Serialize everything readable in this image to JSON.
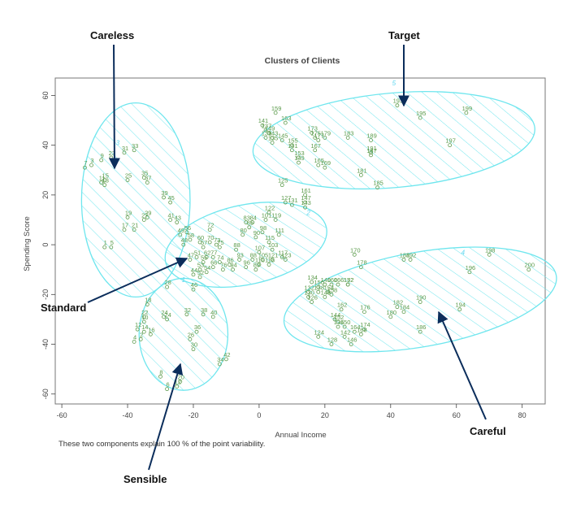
{
  "footnote": "These two components explain 100 % of the point variability.",
  "callouts": [
    {
      "id": "careless",
      "label": "Careless"
    },
    {
      "id": "target",
      "label": "Target"
    },
    {
      "id": "standard",
      "label": "Standard"
    },
    {
      "id": "careful",
      "label": "Careful"
    },
    {
      "id": "sensible",
      "label": "Sensible"
    }
  ],
  "colors": {
    "cluster": "#6fe6ee",
    "cluster_label": "#5fd6f0",
    "point": "#5a9a4a",
    "arrow": "#0b2d5b",
    "axis": "#444444"
  },
  "chart_data": {
    "type": "scatter",
    "title": "Clusters of Clients",
    "xlabel": "Annual Income",
    "ylabel": "Spending Score",
    "xlim": [
      -62,
      87
    ],
    "ylim": [
      -64,
      67
    ],
    "xticks": [
      -60,
      -40,
      -20,
      0,
      20,
      40,
      60,
      80
    ],
    "yticks": [
      -60,
      -40,
      -20,
      0,
      20,
      40,
      60
    ],
    "grid": false,
    "clusters": [
      {
        "label": "3",
        "cx": -37.5,
        "cy": 18,
        "rx": 16.5,
        "ry": 39,
        "angle": 0,
        "label_x": -43,
        "label_y": 40
      },
      {
        "label": "5",
        "cx": 41,
        "cy": 42,
        "rx": 43,
        "ry": 19,
        "angle": 5,
        "label_x": 41,
        "label_y": 64
      },
      {
        "label": "2",
        "cx": -4,
        "cy": 0,
        "rx": 25,
        "ry": 16,
        "angle": 12,
        "label_x": 15,
        "label_y": 12
      },
      {
        "label": "4",
        "cx": 49,
        "cy": -22,
        "rx": 42,
        "ry": 19,
        "angle": 10,
        "label_x": 62,
        "label_y": -4
      },
      {
        "label": "1",
        "cx": -23,
        "cy": -36,
        "rx": 13.5,
        "ry": 22.5,
        "angle": 0,
        "label_x": -23,
        "label_y": -15
      }
    ],
    "points": [
      {
        "x": -51,
        "y": 32,
        "label": "3"
      },
      {
        "x": -53,
        "y": 31,
        "label": "7"
      },
      {
        "x": -48,
        "y": 34,
        "label": "9"
      },
      {
        "x": -45,
        "y": 35,
        "label": "23"
      },
      {
        "x": -41,
        "y": 37,
        "label": "31"
      },
      {
        "x": -38,
        "y": 38,
        "label": "33"
      },
      {
        "x": -47,
        "y": 26,
        "label": "15"
      },
      {
        "x": -48,
        "y": 25,
        "label": "11"
      },
      {
        "x": -47,
        "y": 24,
        "label": "13"
      },
      {
        "x": -40,
        "y": 26,
        "label": "25"
      },
      {
        "x": -35,
        "y": 27,
        "label": "35"
      },
      {
        "x": -34,
        "y": 25,
        "label": "37"
      },
      {
        "x": -29,
        "y": 19,
        "label": "39"
      },
      {
        "x": -27,
        "y": 17,
        "label": "45"
      },
      {
        "x": -40,
        "y": 11,
        "label": "19"
      },
      {
        "x": -34,
        "y": 11,
        "label": "29"
      },
      {
        "x": -35,
        "y": 10,
        "label": "27"
      },
      {
        "x": -27,
        "y": 10,
        "label": "41"
      },
      {
        "x": -25,
        "y": 9,
        "label": "43"
      },
      {
        "x": -41,
        "y": 6,
        "label": "17"
      },
      {
        "x": -38,
        "y": 6,
        "label": "21"
      },
      {
        "x": -47,
        "y": -1,
        "label": "1"
      },
      {
        "x": -45,
        "y": -1,
        "label": "5"
      },
      {
        "x": 5,
        "y": 53,
        "label": "159"
      },
      {
        "x": 8,
        "y": 49,
        "label": "163"
      },
      {
        "x": 1,
        "y": 48,
        "label": "141"
      },
      {
        "x": 2,
        "y": 46,
        "label": "137"
      },
      {
        "x": 3,
        "y": 45,
        "label": "149"
      },
      {
        "x": 2,
        "y": 43,
        "label": "139"
      },
      {
        "x": 4,
        "y": 43,
        "label": "143"
      },
      {
        "x": 7,
        "y": 42,
        "label": "145"
      },
      {
        "x": 4,
        "y": 41,
        "label": "135"
      },
      {
        "x": 10,
        "y": 40,
        "label": "155"
      },
      {
        "x": 10,
        "y": 38,
        "label": "151"
      },
      {
        "x": 12,
        "y": 35,
        "label": "153"
      },
      {
        "x": 12,
        "y": 33,
        "label": "149"
      },
      {
        "x": 16,
        "y": 45,
        "label": "173"
      },
      {
        "x": 17,
        "y": 43,
        "label": "175"
      },
      {
        "x": 20,
        "y": 43,
        "label": "179"
      },
      {
        "x": 27,
        "y": 43,
        "label": "183"
      },
      {
        "x": 34,
        "y": 42,
        "label": "189"
      },
      {
        "x": 18,
        "y": 42,
        "label": "177"
      },
      {
        "x": 17,
        "y": 38,
        "label": "167"
      },
      {
        "x": 34,
        "y": 37,
        "label": "191"
      },
      {
        "x": 34,
        "y": 36,
        "label": "187"
      },
      {
        "x": 18,
        "y": 32,
        "label": "165"
      },
      {
        "x": 20,
        "y": 31,
        "label": "169"
      },
      {
        "x": 31,
        "y": 28,
        "label": "181"
      },
      {
        "x": 36,
        "y": 23,
        "label": "185"
      },
      {
        "x": 42,
        "y": 56,
        "label": "193"
      },
      {
        "x": 49,
        "y": 51,
        "label": "195"
      },
      {
        "x": 63,
        "y": 53,
        "label": "199"
      },
      {
        "x": 58,
        "y": 40,
        "label": "197"
      },
      {
        "x": 7,
        "y": 24,
        "label": "125"
      },
      {
        "x": 14,
        "y": 20,
        "label": "161"
      },
      {
        "x": 14,
        "y": 17,
        "label": "147"
      },
      {
        "x": 8,
        "y": 17,
        "label": "127"
      },
      {
        "x": 10,
        "y": 16,
        "label": "131"
      },
      {
        "x": 14,
        "y": 15,
        "label": "143"
      },
      {
        "x": 3,
        "y": 13,
        "label": "122"
      },
      {
        "x": -4,
        "y": 9,
        "label": "83"
      },
      {
        "x": -2,
        "y": 9,
        "label": "84"
      },
      {
        "x": 2,
        "y": 10,
        "label": "101"
      },
      {
        "x": 5,
        "y": 10,
        "label": "119"
      },
      {
        "x": -15,
        "y": 6,
        "label": "72"
      },
      {
        "x": -22,
        "y": 5,
        "label": "56"
      },
      {
        "x": -24,
        "y": 4,
        "label": "49"
      },
      {
        "x": -21,
        "y": 2,
        "label": "58"
      },
      {
        "x": -18,
        "y": 1,
        "label": "60"
      },
      {
        "x": -15,
        "y": 1,
        "label": "70"
      },
      {
        "x": -13,
        "y": 0,
        "label": "73"
      },
      {
        "x": -23,
        "y": 0,
        "label": "48"
      },
      {
        "x": -17,
        "y": -1,
        "label": "57"
      },
      {
        "x": -12,
        "y": -1,
        "label": "75"
      },
      {
        "x": -7,
        "y": -2,
        "label": "88"
      },
      {
        "x": 0,
        "y": -3,
        "label": "107"
      },
      {
        "x": 4,
        "y": -2,
        "label": "103"
      },
      {
        "x": 3,
        "y": 1,
        "label": "115"
      },
      {
        "x": -1,
        "y": 3,
        "label": "90"
      },
      {
        "x": 1,
        "y": 5,
        "label": "98"
      },
      {
        "x": -5,
        "y": 4,
        "label": "80"
      },
      {
        "x": -3,
        "y": 7,
        "label": "85"
      },
      {
        "x": 6,
        "y": 4,
        "label": "111"
      },
      {
        "x": -19,
        "y": -5,
        "label": "51"
      },
      {
        "x": -21,
        "y": -6,
        "label": "47"
      },
      {
        "x": -16,
        "y": -5,
        "label": "62"
      },
      {
        "x": -14,
        "y": -5,
        "label": "77"
      },
      {
        "x": -12,
        "y": -7,
        "label": "74"
      },
      {
        "x": -9,
        "y": -8,
        "label": "86"
      },
      {
        "x": -6,
        "y": -6,
        "label": "93"
      },
      {
        "x": -2,
        "y": -6,
        "label": "88"
      },
      {
        "x": 1,
        "y": -6,
        "label": "105"
      },
      {
        "x": 4,
        "y": -6,
        "label": "121"
      },
      {
        "x": 8,
        "y": -6,
        "label": "123"
      },
      {
        "x": 7,
        "y": -5,
        "label": "117"
      },
      {
        "x": -17,
        "y": -7,
        "label": "55"
      },
      {
        "x": -14,
        "y": -9,
        "label": "66"
      },
      {
        "x": -11,
        "y": -10,
        "label": "76"
      },
      {
        "x": -8,
        "y": -10,
        "label": "94"
      },
      {
        "x": -4,
        "y": -9,
        "label": "96"
      },
      {
        "x": 0,
        "y": -8,
        "label": "110"
      },
      {
        "x": 3,
        "y": -8,
        "label": "118"
      },
      {
        "x": -1,
        "y": -10,
        "label": "89"
      },
      {
        "x": -18,
        "y": -10,
        "label": "53"
      },
      {
        "x": -16,
        "y": -11,
        "label": "54"
      },
      {
        "x": -20,
        "y": -12,
        "label": "44"
      },
      {
        "x": -18,
        "y": -13,
        "label": "52"
      },
      {
        "x": -20,
        "y": -18,
        "label": "46"
      },
      {
        "x": -28,
        "y": -17,
        "label": "28"
      },
      {
        "x": -34,
        "y": -24,
        "label": "18"
      },
      {
        "x": -35,
        "y": -29,
        "label": "22"
      },
      {
        "x": -29,
        "y": -29,
        "label": "24"
      },
      {
        "x": -28,
        "y": -30,
        "label": "24"
      },
      {
        "x": -22,
        "y": -28,
        "label": "32"
      },
      {
        "x": -17,
        "y": -28,
        "label": "38"
      },
      {
        "x": -14,
        "y": -29,
        "label": "40"
      },
      {
        "x": -35,
        "y": -31,
        "label": "10"
      },
      {
        "x": -37,
        "y": -34,
        "label": "12"
      },
      {
        "x": -35,
        "y": -35,
        "label": "14"
      },
      {
        "x": -33,
        "y": -36,
        "label": "16"
      },
      {
        "x": -36,
        "y": -38,
        "label": "2"
      },
      {
        "x": -38,
        "y": -39,
        "label": "4"
      },
      {
        "x": -19,
        "y": -35,
        "label": "36"
      },
      {
        "x": -21,
        "y": -38,
        "label": "26"
      },
      {
        "x": -20,
        "y": -42,
        "label": "30"
      },
      {
        "x": -12,
        "y": -48,
        "label": "34"
      },
      {
        "x": -10,
        "y": -46,
        "label": "42"
      },
      {
        "x": -30,
        "y": -53,
        "label": "8"
      },
      {
        "x": -24,
        "y": -55,
        "label": "20"
      },
      {
        "x": -25,
        "y": -57,
        "label": "12"
      },
      {
        "x": -28,
        "y": -58,
        "label": "6"
      },
      {
        "x": 29,
        "y": -4,
        "label": "170"
      },
      {
        "x": 31,
        "y": -9,
        "label": "178"
      },
      {
        "x": 44,
        "y": -6,
        "label": "188"
      },
      {
        "x": 46,
        "y": -6,
        "label": "192"
      },
      {
        "x": 70,
        "y": -4,
        "label": "198"
      },
      {
        "x": 82,
        "y": -10,
        "label": "200"
      },
      {
        "x": 64,
        "y": -11,
        "label": "196"
      },
      {
        "x": 16,
        "y": -15,
        "label": "134"
      },
      {
        "x": 18,
        "y": -17,
        "label": "150"
      },
      {
        "x": 20,
        "y": -16,
        "label": "140"
      },
      {
        "x": 22,
        "y": -16,
        "label": "160"
      },
      {
        "x": 27,
        "y": -16,
        "label": "172"
      },
      {
        "x": 18,
        "y": -19,
        "label": "138"
      },
      {
        "x": 15,
        "y": -19,
        "label": "132"
      },
      {
        "x": 21,
        "y": -19,
        "label": "154"
      },
      {
        "x": 22,
        "y": -20,
        "label": "158"
      },
      {
        "x": 15,
        "y": -21,
        "label": "130"
      },
      {
        "x": 16,
        "y": -23,
        "label": "126"
      },
      {
        "x": 20,
        "y": -21,
        "label": "148"
      },
      {
        "x": 24,
        "y": -16,
        "label": "166"
      },
      {
        "x": 27,
        "y": -16,
        "label": "152"
      },
      {
        "x": 25,
        "y": -26,
        "label": "162"
      },
      {
        "x": 32,
        "y": -27,
        "label": "176"
      },
      {
        "x": 42,
        "y": -25,
        "label": "182"
      },
      {
        "x": 49,
        "y": -23,
        "label": "190"
      },
      {
        "x": 44,
        "y": -27,
        "label": "184"
      },
      {
        "x": 40,
        "y": -29,
        "label": "180"
      },
      {
        "x": 61,
        "y": -26,
        "label": "194"
      },
      {
        "x": 23,
        "y": -30,
        "label": "144"
      },
      {
        "x": 24,
        "y": -31,
        "label": "152"
      },
      {
        "x": 24,
        "y": -33,
        "label": "136"
      },
      {
        "x": 26,
        "y": -33,
        "label": "150"
      },
      {
        "x": 29,
        "y": -35,
        "label": "164"
      },
      {
        "x": 32,
        "y": -34,
        "label": "174"
      },
      {
        "x": 31,
        "y": -36,
        "label": "168"
      },
      {
        "x": 49,
        "y": -35,
        "label": "186"
      },
      {
        "x": 18,
        "y": -37,
        "label": "124"
      },
      {
        "x": 26,
        "y": -37,
        "label": "142"
      },
      {
        "x": 22,
        "y": -40,
        "label": "128"
      },
      {
        "x": 28,
        "y": -40,
        "label": "146"
      }
    ]
  }
}
